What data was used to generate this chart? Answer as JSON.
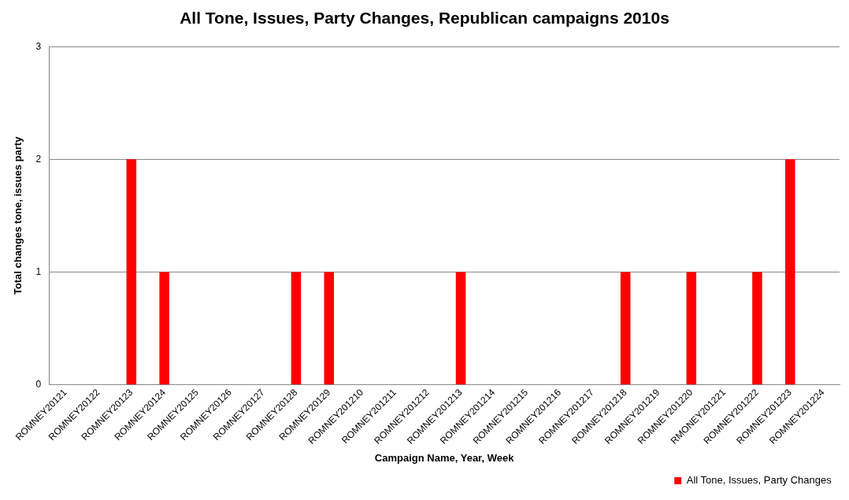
{
  "chart_data": {
    "type": "bar",
    "title": "All Tone, Issues, Party Changes, Republican campaigns 2010s",
    "xlabel": "Campaign Name, Year, Week",
    "ylabel": "Total changes tone, issues party",
    "categories": [
      "ROMNEY20121",
      "ROMNEY20122",
      "ROMNEY20123",
      "ROMNEY20124",
      "ROMNEY20125",
      "ROMNEY20126",
      "ROMNEY20127",
      "ROMNEY20128",
      "ROMNEY20129",
      "ROMNEY201210",
      "ROMNEY201211",
      "ROMNEY201212",
      "ROMNEY201213",
      "ROMNEY201214",
      "ROMNEY201215",
      "ROMNEY201216",
      "ROMNEY201217",
      "ROMNEY201218",
      "ROMNEY201219",
      "ROMNEY201220",
      "RMONEY201221",
      "ROMNEY201222",
      "ROMNEY201223",
      "ROMNEY201224"
    ],
    "series": [
      {
        "name": "All Tone, Issues, Party Changes",
        "color": "#ff0000",
        "values": [
          0,
          0,
          2,
          1,
          0,
          0,
          0,
          1,
          1,
          0,
          0,
          0,
          1,
          0,
          0,
          0,
          0,
          1,
          0,
          1,
          0,
          1,
          2,
          0
        ]
      }
    ],
    "ylim": [
      0,
      3
    ],
    "yticks": [
      0,
      1,
      2,
      3
    ],
    "grid": "y",
    "legend": "bottom right"
  }
}
